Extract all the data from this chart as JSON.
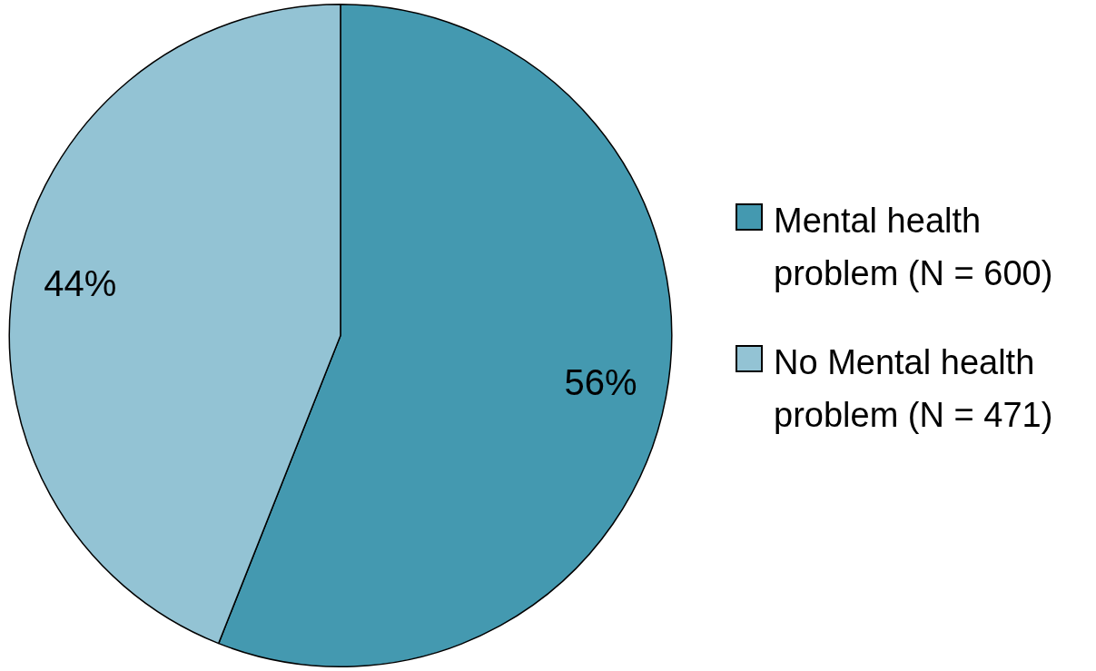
{
  "chart_data": {
    "type": "pie",
    "categories": [
      "Mental health problem (N = 600)",
      "No Mental health problem (N = 471)"
    ],
    "values": [
      56,
      44
    ],
    "colors": [
      "#4499b0",
      "#93c3d4"
    ],
    "value_labels": [
      "56%",
      "44%"
    ],
    "legend": "right"
  }
}
